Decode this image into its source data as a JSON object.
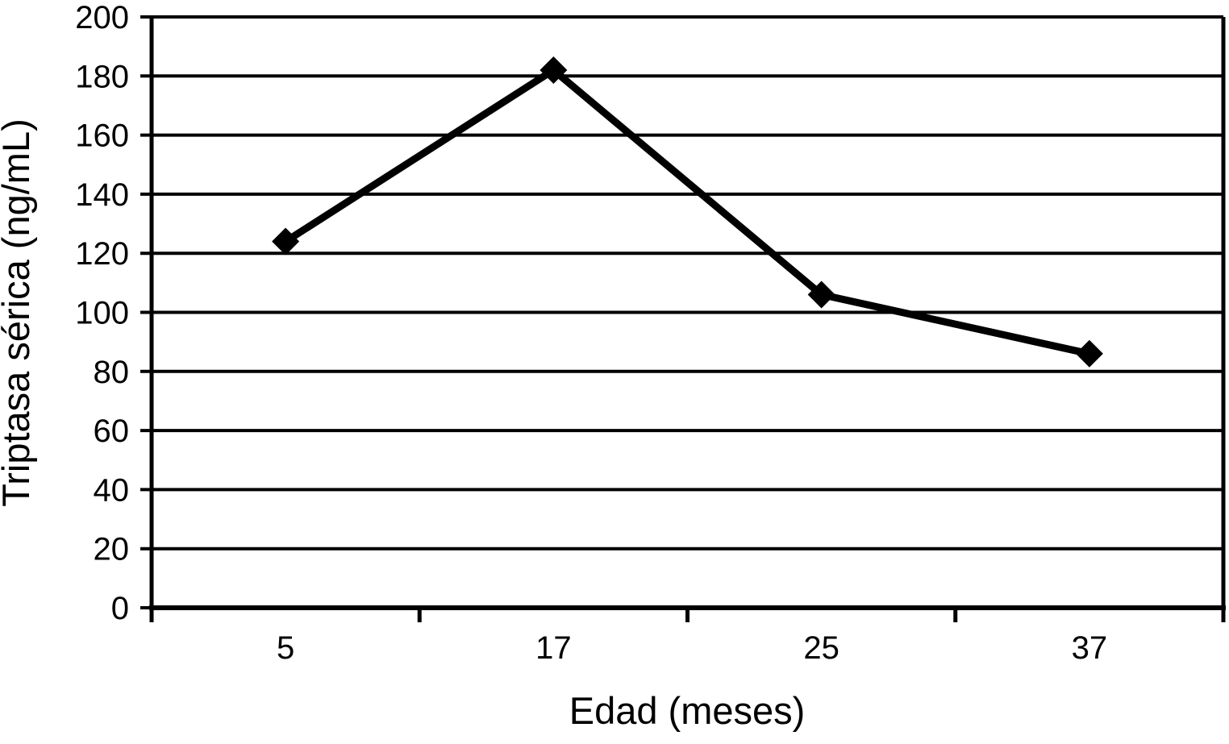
{
  "chart_data": {
    "type": "line",
    "title": "",
    "categories": [
      "5",
      "17",
      "25",
      "37"
    ],
    "values": [
      124,
      182,
      106,
      86
    ],
    "xlabel": "Edad (meses)",
    "ylabel": "Triptasa sérica (ng/mL)",
    "ylim": [
      0,
      200
    ],
    "ytick_step": 20,
    "yticks": [
      0,
      20,
      40,
      60,
      80,
      100,
      120,
      140,
      160,
      180,
      200
    ],
    "grid": "horizontal-only",
    "legend_position": "none",
    "marker_shape": "diamond",
    "line_color": "#000000",
    "marker_color": "#000000",
    "grid_color": "#000000",
    "axis_color": "#000000",
    "text_color": "#000000",
    "background_color": "#ffffff"
  }
}
